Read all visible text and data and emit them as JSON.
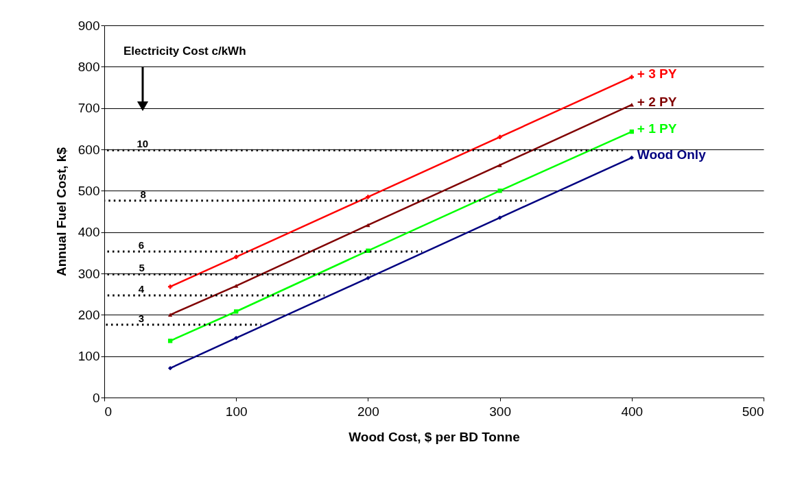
{
  "chart_data": {
    "type": "line",
    "xlabel": "Wood Cost, $ per BD Tonne",
    "ylabel": "Annual Fuel Cost, k$",
    "xlim": [
      0,
      500
    ],
    "xticks": [
      0,
      100,
      200,
      300,
      400,
      500
    ],
    "ylim": [
      0,
      900
    ],
    "yticks": [
      0,
      100,
      200,
      300,
      400,
      500,
      600,
      700,
      800,
      900
    ],
    "grid": "y",
    "legend": false,
    "x": [
      50,
      100,
      200,
      300,
      400
    ],
    "series": [
      {
        "name": "+ 3 PY",
        "color": "#ff0000",
        "marker": "cross",
        "values": [
          268,
          340,
          485,
          630,
          775
        ]
      },
      {
        "name": "+ 2 PY",
        "color": "#800000",
        "marker": "triangle",
        "values": [
          200,
          270,
          417,
          562,
          708
        ]
      },
      {
        "name": "+ 1 PY",
        "color": "#00ff00",
        "marker": "square",
        "values": [
          137,
          208,
          355,
          500,
          643
        ]
      },
      {
        "name": "Wood Only",
        "color": "#000080",
        "marker": "diamond",
        "values": [
          71,
          144,
          289,
          435,
          580
        ]
      },
      {
        "type": "line",
        "color": "#000000",
        "line_style": "dotted",
        "marker": "none",
        "x": [
          0,
          393
        ],
        "values": [
          598,
          598
        ]
      },
      {
        "type": "line",
        "color": "#000000",
        "line_style": "dotted",
        "marker": "none",
        "x": [
          0,
          320
        ],
        "values": [
          476,
          476
        ]
      },
      {
        "type": "line",
        "color": "#000000",
        "line_style": "dotted",
        "marker": "none",
        "x": [
          0,
          241
        ],
        "values": [
          353,
          353
        ]
      },
      {
        "type": "line",
        "color": "#000000",
        "line_style": "dotted",
        "marker": "none",
        "x": [
          0,
          202
        ],
        "values": [
          298,
          298
        ]
      },
      {
        "type": "line",
        "color": "#000000",
        "line_style": "dotted",
        "marker": "none",
        "x": [
          0,
          167
        ],
        "values": [
          247,
          247
        ]
      },
      {
        "type": "line",
        "color": "#000000",
        "line_style": "dotted",
        "marker": "none",
        "x": [
          0,
          119
        ],
        "values": [
          176,
          176
        ]
      }
    ],
    "annotations": [
      "Electricity Cost c/kWh",
      {
        "text": "10",
        "x": 29,
        "y": 598
      },
      {
        "text": "8",
        "x": 29.5,
        "y": 476
      },
      {
        "text": "6",
        "x": 28,
        "y": 353
      },
      {
        "text": "5",
        "x": 28.5,
        "y": 298
      },
      {
        "text": "4",
        "x": 28,
        "y": 247
      },
      {
        "text": "3",
        "x": 28,
        "y": 176
      }
    ]
  }
}
